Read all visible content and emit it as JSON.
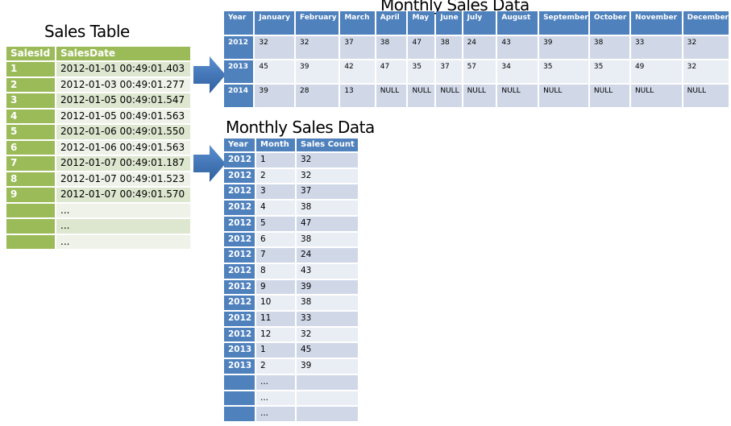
{
  "sales_table": {
    "title": "Sales Table",
    "headers": [
      "SalesId",
      "SalesDate"
    ],
    "rows": [
      [
        "1",
        "2012-01-01  00:49:01.403"
      ],
      [
        "2",
        "2012-01-03  00:49:01.277"
      ],
      [
        "3",
        "2012-01-05  00:49:01.547"
      ],
      [
        "4",
        "2012-01-05  00:49:01.563"
      ],
      [
        "5",
        "2012-01-06  00:49:01.550"
      ],
      [
        "6",
        "2012-01-06  00:49:01.563"
      ],
      [
        "7",
        "2012-01-07  00:49:01.187"
      ],
      [
        "8",
        "2012-01-07  00:49:01.523"
      ],
      [
        "9",
        "2012-01-07  00:49:01.570"
      ],
      [
        "",
        "..."
      ],
      [
        "",
        "..."
      ],
      [
        "",
        "..."
      ]
    ]
  },
  "pivot_table": {
    "title": "Monthly Sales Data",
    "headers": [
      "Year",
      "January",
      "February",
      "March",
      "April",
      "May",
      "June",
      "July",
      "August",
      "September",
      "October",
      "November",
      "December"
    ],
    "rows": [
      [
        "2012",
        "32",
        "32",
        "37",
        "38",
        "47",
        "38",
        "24",
        "43",
        "39",
        "38",
        "33",
        "32"
      ],
      [
        "2013",
        "45",
        "39",
        "42",
        "47",
        "35",
        "37",
        "57",
        "34",
        "35",
        "35",
        "49",
        "32"
      ],
      [
        "2014",
        "39",
        "28",
        "13",
        "NULL",
        "NULL",
        "NULL",
        "NULL",
        "NULL",
        "NULL",
        "NULL",
        "NULL",
        "NULL"
      ]
    ]
  },
  "monthly_table": {
    "title": "Monthly Sales Data",
    "headers": [
      "Year",
      "Month",
      "Sales Count"
    ],
    "rows": [
      [
        "2012",
        "1",
        "32"
      ],
      [
        "2012",
        "2",
        "32"
      ],
      [
        "2012",
        "3",
        "37"
      ],
      [
        "2012",
        "4",
        "38"
      ],
      [
        "2012",
        "5",
        "47"
      ],
      [
        "2012",
        "6",
        "38"
      ],
      [
        "2012",
        "7",
        "24"
      ],
      [
        "2012",
        "8",
        "43"
      ],
      [
        "2012",
        "9",
        "39"
      ],
      [
        "2012",
        "10",
        "38"
      ],
      [
        "2012",
        "11",
        "33"
      ],
      [
        "2012",
        "12",
        "32"
      ],
      [
        "2013",
        "1",
        "45"
      ],
      [
        "2013",
        "2",
        "39"
      ],
      [
        "",
        "...",
        ""
      ],
      [
        "",
        "...",
        ""
      ],
      [
        "",
        "...",
        ""
      ]
    ]
  },
  "colors": {
    "green": "#9bbb59",
    "blue": "#4f81bd"
  }
}
